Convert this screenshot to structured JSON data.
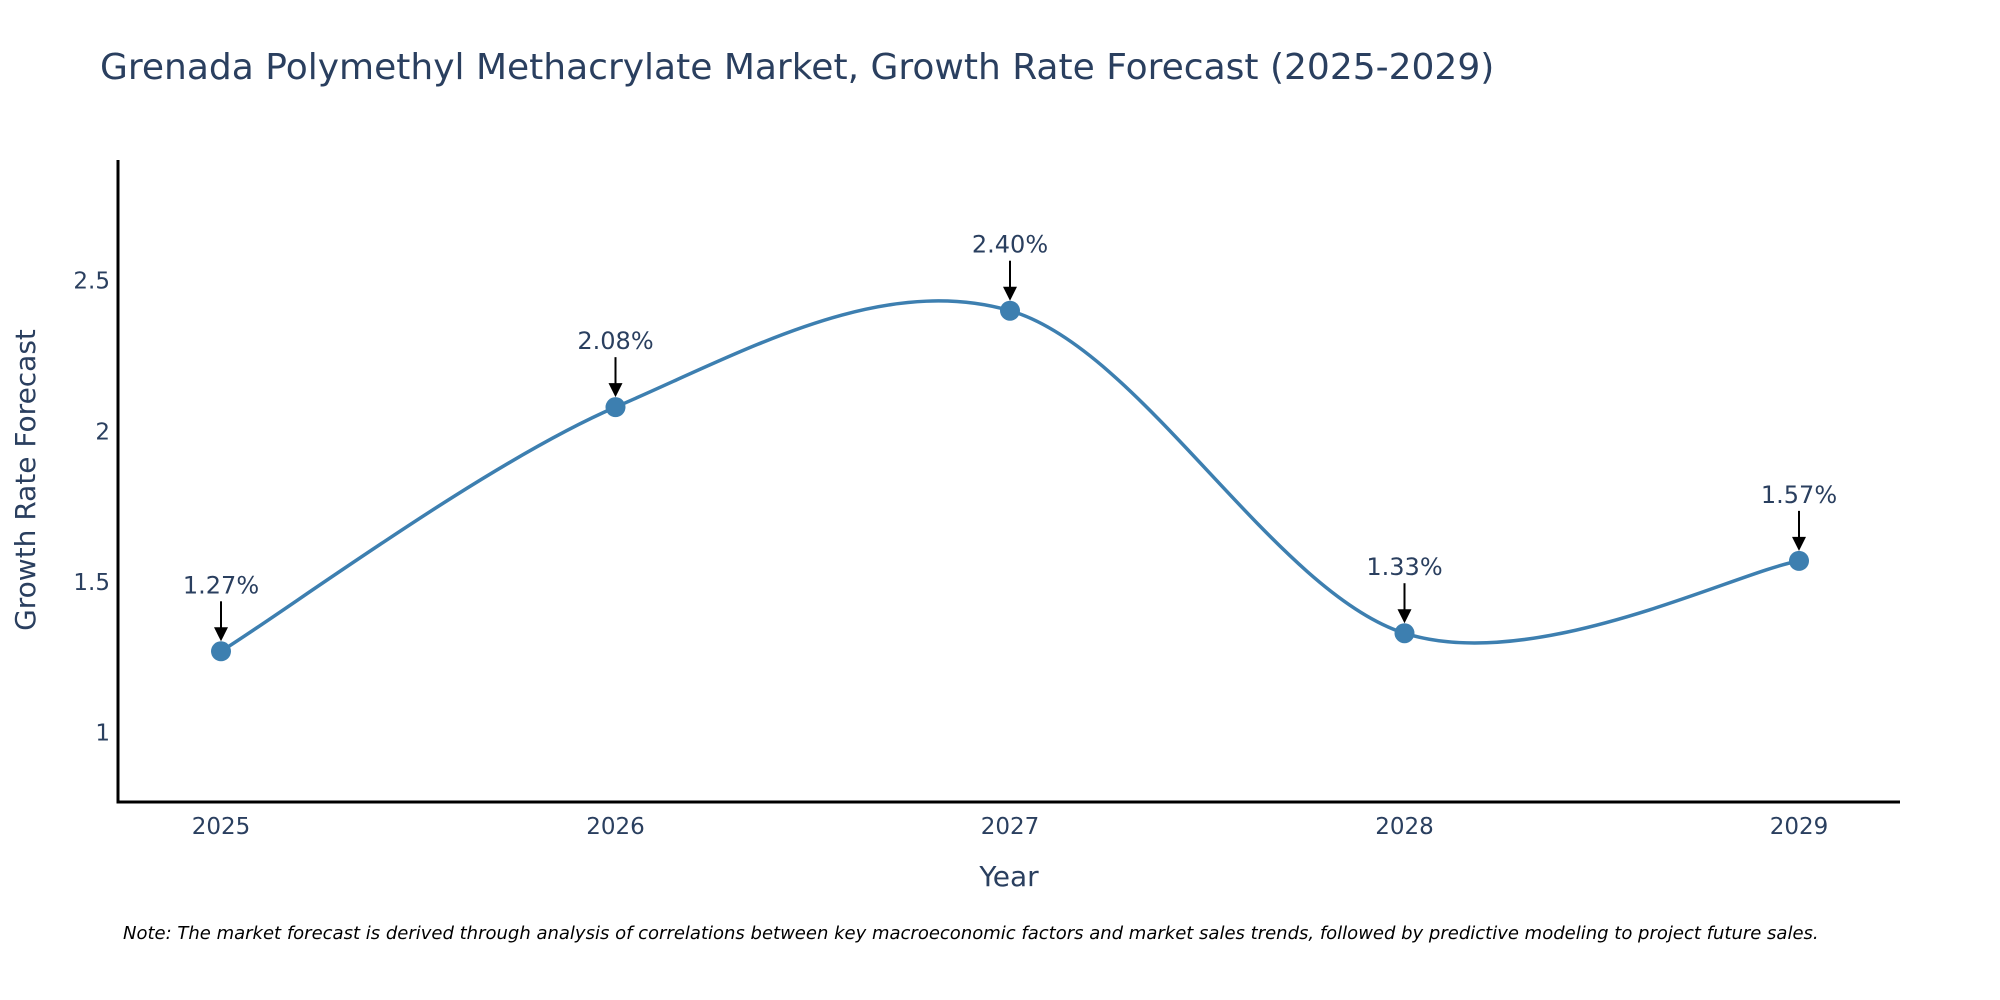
{
  "chart_data": {
    "type": "line",
    "title": "Grenada Polymethyl Methacrylate Market, Growth Rate Forecast (2025-2029)",
    "xlabel": "Year",
    "ylabel": "Growth Rate Forecast",
    "categories": [
      "2025",
      "2026",
      "2027",
      "2028",
      "2029"
    ],
    "values": [
      1.27,
      2.08,
      2.4,
      1.33,
      1.57
    ],
    "data_labels": [
      "1.27%",
      "2.08%",
      "2.40%",
      "1.33%",
      "1.57%"
    ],
    "y_ticks": [
      1,
      1.5,
      2,
      2.5
    ],
    "y_tick_labels": [
      "1",
      "1.5",
      "2",
      "2.5"
    ],
    "ylim": [
      0.77,
      2.9
    ],
    "grid": false,
    "line_shape": "spline",
    "note": "Note: The market forecast is derived through analysis of correlations between key macroeconomic factors and market sales trends, followed by predictive modeling to project future sales."
  },
  "colors": {
    "line": "#3d7fb0",
    "marker": "#3d7fb0",
    "axis": "#000000",
    "text": "#2a3f5f",
    "arrow": "#000000"
  }
}
